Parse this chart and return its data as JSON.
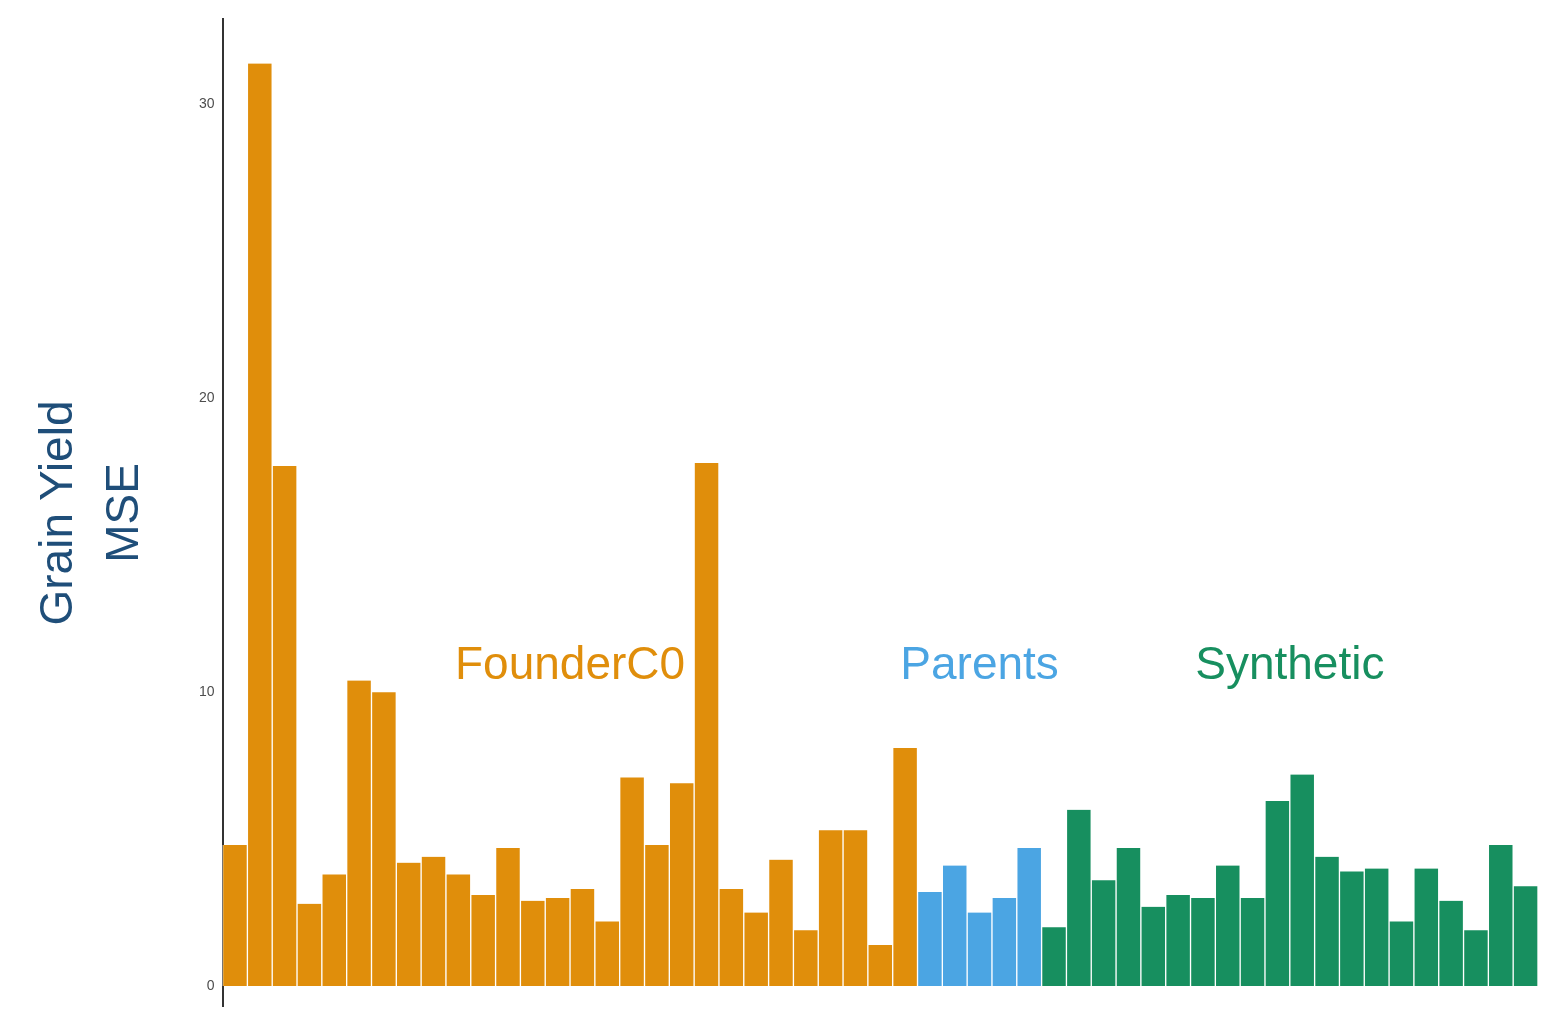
{
  "chart_data": {
    "type": "bar",
    "ylabel": "Grain Yield\nMSE",
    "categories": [
      null,
      null,
      null,
      null,
      null,
      null,
      null,
      null,
      null,
      null,
      null,
      null,
      null,
      null,
      null,
      null,
      null,
      null,
      null,
      null,
      null,
      null,
      null,
      null,
      null,
      null,
      null,
      null,
      null,
      null,
      null,
      null,
      null,
      null,
      null,
      null,
      null,
      null,
      null,
      null,
      null,
      null,
      null,
      null,
      null,
      null,
      null,
      null,
      null,
      null,
      null,
      null,
      null
    ],
    "series": [
      {
        "name": "FounderC0",
        "color": "#e08e0b",
        "values": [
          4.8,
          31.4,
          17.7,
          2.8,
          3.8,
          10.4,
          10.0,
          4.2,
          4.4,
          3.8,
          3.1,
          4.7,
          2.9,
          3.0,
          3.3,
          2.2,
          7.1,
          4.8,
          6.9,
          17.8,
          3.3,
          2.5,
          4.3,
          1.9,
          5.3,
          5.3,
          1.4,
          8.1,
          null,
          null,
          null,
          null,
          null,
          null,
          null,
          null,
          null,
          null,
          null,
          null,
          null,
          null,
          null,
          null,
          null,
          null,
          null,
          null,
          null,
          null,
          null,
          null,
          null
        ]
      },
      {
        "name": "Parents",
        "color": "#4ba5e3",
        "values": [
          null,
          null,
          null,
          null,
          null,
          null,
          null,
          null,
          null,
          null,
          null,
          null,
          null,
          null,
          null,
          null,
          null,
          null,
          null,
          null,
          null,
          null,
          null,
          null,
          null,
          null,
          null,
          null,
          3.2,
          4.1,
          2.5,
          3.0,
          4.7,
          null,
          null,
          null,
          null,
          null,
          null,
          null,
          null,
          null,
          null,
          null,
          null,
          null,
          null,
          null,
          null,
          null,
          null,
          null,
          null
        ]
      },
      {
        "name": "Synthetic",
        "color": "#178f5f",
        "values": [
          null,
          null,
          null,
          null,
          null,
          null,
          null,
          null,
          null,
          null,
          null,
          null,
          null,
          null,
          null,
          null,
          null,
          null,
          null,
          null,
          null,
          null,
          null,
          null,
          null,
          null,
          null,
          null,
          null,
          null,
          null,
          null,
          null,
          2.0,
          6.0,
          3.6,
          4.7,
          2.7,
          3.1,
          3.0,
          4.1,
          3.0,
          6.3,
          7.2,
          4.4,
          3.9,
          4.0,
          2.2,
          4.0,
          2.9,
          1.9,
          4.8,
          3.4
        ]
      }
    ],
    "ylim": [
      -0.7,
      32.9
    ],
    "yticks": [
      0,
      10,
      20,
      30
    ],
    "stacked": true,
    "grid": false,
    "legend": false,
    "tick_labels": "y"
  }
}
